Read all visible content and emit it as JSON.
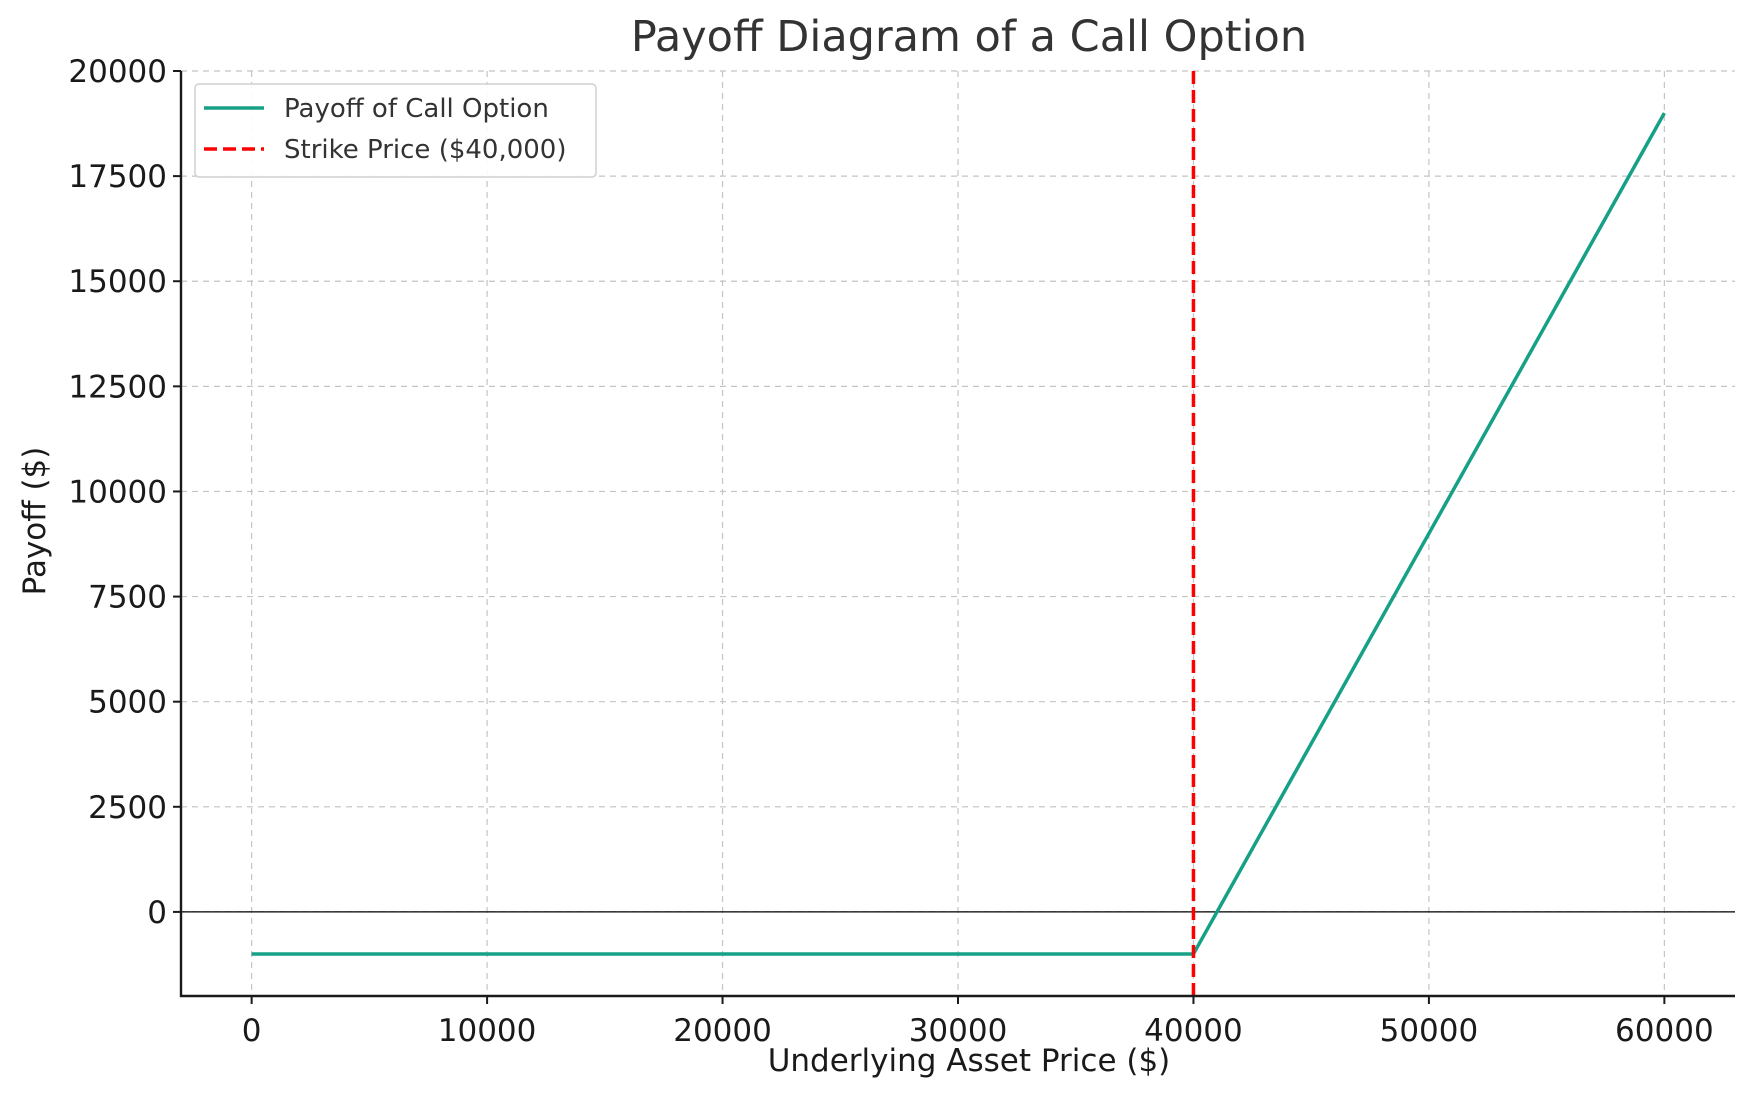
{
  "chart_data": {
    "type": "line",
    "title": "Payoff Diagram of a Call Option",
    "xlabel": "Underlying Asset Price ($)",
    "ylabel": "Payoff ($)",
    "xlim": [
      -3000,
      63000
    ],
    "ylim": [
      -2000,
      20000
    ],
    "x_ticks": [
      0,
      10000,
      20000,
      30000,
      40000,
      50000,
      60000
    ],
    "y_ticks": [
      0,
      2500,
      5000,
      7500,
      10000,
      12500,
      15000,
      17500,
      20000
    ],
    "grid": true,
    "zero_line": true,
    "legend_position": "top-left",
    "series": [
      {
        "name": "Payoff of Call Option",
        "style": "solid",
        "color": "#16a085",
        "x": [
          0,
          40000,
          60000
        ],
        "y": [
          -1000,
          -1000,
          19000
        ]
      }
    ],
    "vlines": [
      {
        "name": "Strike Price ($40,000)",
        "x": 40000,
        "style": "dashed",
        "color": "#ff0000"
      }
    ]
  }
}
